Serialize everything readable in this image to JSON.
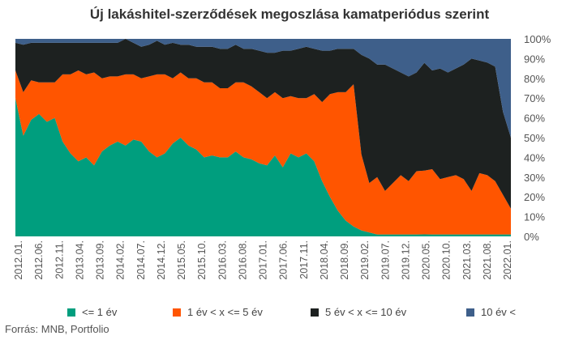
{
  "title": "Új lakáshitel-szerződések megoszlása kamatperiódus szerint",
  "source": "Forrás: MNB, Portfolio",
  "chart_data": {
    "type": "area",
    "stacked": true,
    "percent_stacked": true,
    "y_axis_side": "right",
    "ylim": [
      0,
      100
    ],
    "y_ticks": [
      "0%",
      "10%",
      "20%",
      "30%",
      "40%",
      "50%",
      "60%",
      "70%",
      "80%",
      "90%",
      "100%"
    ],
    "grid": false,
    "legend_position": "bottom",
    "x_tick_labels": [
      "2012.01.",
      "2012.06.",
      "2012.11.",
      "2013.04.",
      "2013.09.",
      "2014.02.",
      "2014.07.",
      "2014.12.",
      "2015.05.",
      "2015.10.",
      "2016.03.",
      "2016.08.",
      "2017.01.",
      "2017.06.",
      "2017.11.",
      "2018.04.",
      "2018.09.",
      "2019.02.",
      "2019.07.",
      "2019.12.",
      "2020.05.",
      "2020.10.",
      "2021.03.",
      "2021.08.",
      "2022.01."
    ],
    "x_start": "2012.01.",
    "x_end": "2022.03.",
    "series": [
      {
        "name": "<= 1 év",
        "color": "#009e7e",
        "values": [
          70,
          51,
          59,
          62,
          58,
          60,
          48,
          42,
          38,
          40,
          36,
          43,
          46,
          48,
          46,
          49,
          48,
          43,
          40,
          42,
          47,
          50,
          46,
          44,
          40,
          41,
          40,
          40,
          43,
          40,
          39,
          37,
          36,
          41,
          35,
          42,
          40,
          42,
          38,
          28,
          20,
          13,
          8,
          5,
          3,
          2,
          1,
          1,
          1,
          1,
          1,
          1,
          1,
          1,
          1,
          1,
          1,
          1,
          1,
          1,
          1,
          1,
          1,
          1
        ]
      },
      {
        "name": "1 év < x <= 5 év",
        "color": "#ff5500",
        "values": [
          14,
          22,
          20,
          16,
          20,
          18,
          34,
          40,
          46,
          42,
          47,
          37,
          35,
          33,
          36,
          33,
          32,
          38,
          42,
          40,
          33,
          33,
          34,
          36,
          38,
          37,
          35,
          35,
          35,
          38,
          37,
          36,
          34,
          32,
          35,
          29,
          30,
          28,
          34,
          40,
          52,
          60,
          65,
          72,
          38,
          25,
          29,
          22,
          26,
          30,
          27,
          32,
          32,
          33,
          28,
          29,
          30,
          28,
          22,
          31,
          30,
          27,
          20,
          13
        ]
      },
      {
        "name": "5 év < x <= 10 év",
        "color": "#1d2120",
        "values": [
          14,
          24,
          19,
          20,
          20,
          20,
          16,
          16,
          14,
          16,
          15,
          18,
          17,
          17,
          18,
          16,
          16,
          16,
          17,
          15,
          18,
          14,
          17,
          16,
          18,
          18,
          20,
          20,
          19,
          17,
          19,
          21,
          23,
          20,
          24,
          23,
          25,
          26,
          23,
          26,
          22,
          22,
          22,
          18,
          50,
          63,
          57,
          64,
          58,
          52,
          53,
          50,
          54,
          50,
          56,
          53,
          54,
          58,
          67,
          57,
          57,
          58,
          42,
          36
        ]
      },
      {
        "name": "10 év <",
        "color": "#3e5f8a",
        "values": [
          2,
          3,
          2,
          2,
          2,
          2,
          2,
          2,
          2,
          2,
          2,
          2,
          2,
          2,
          0,
          2,
          4,
          3,
          1,
          3,
          2,
          3,
          3,
          4,
          4,
          4,
          5,
          5,
          3,
          5,
          5,
          6,
          7,
          7,
          6,
          6,
          5,
          4,
          5,
          6,
          6,
          5,
          5,
          5,
          8,
          10,
          13,
          13,
          15,
          17,
          19,
          17,
          12,
          16,
          15,
          17,
          15,
          13,
          10,
          11,
          12,
          14,
          37,
          50
        ]
      }
    ]
  }
}
